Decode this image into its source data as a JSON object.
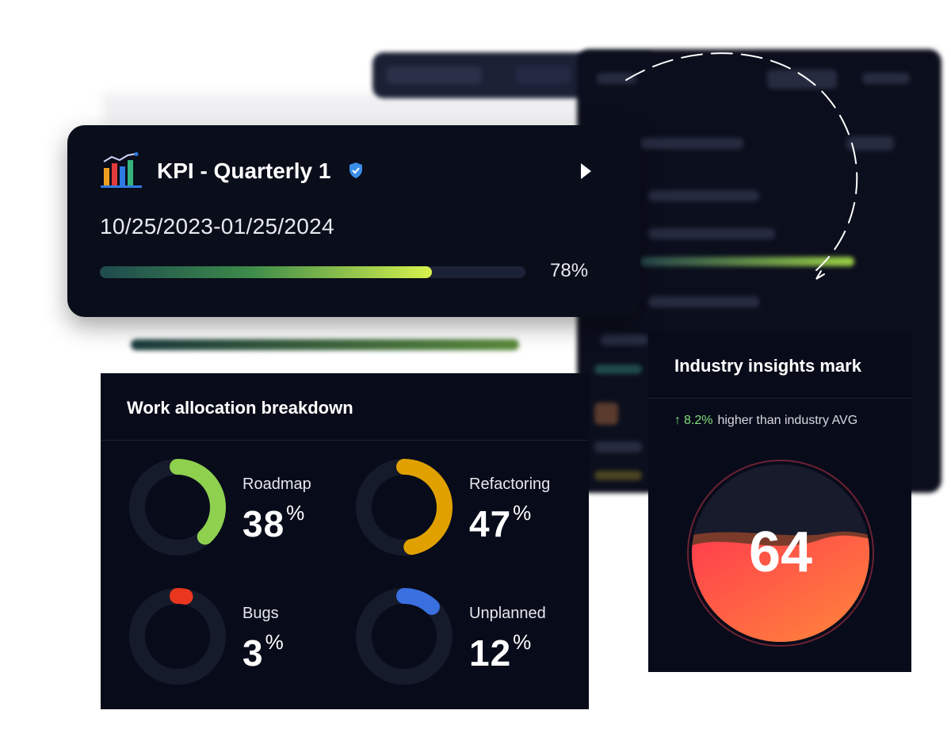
{
  "kpi": {
    "title": "KPI - Quarterly 1",
    "date_range": "10/25/2023-01/25/2024",
    "progress": 0.78,
    "progress_label": "78%",
    "logo_icon": "bar-chart-icon",
    "badge_icon": "verified-shield-icon",
    "action_icon": "play-arrow-icon"
  },
  "work_allocation": {
    "title": "Work allocation breakdown",
    "items": [
      {
        "label": "Roadmap",
        "value": "38",
        "unit": "%",
        "fraction": 0.38,
        "color": "#8fd14f"
      },
      {
        "label": "Refactoring",
        "value": "47",
        "unit": "%",
        "fraction": 0.47,
        "color": "#e0a100"
      },
      {
        "label": "Bugs",
        "value": "3",
        "unit": "%",
        "fraction": 0.03,
        "color": "#e8361f"
      },
      {
        "label": "Unplanned",
        "value": "12",
        "unit": "%",
        "fraction": 0.12,
        "color": "#3a6fe0"
      }
    ]
  },
  "insights": {
    "title": "Industry insights mark",
    "delta": "8.2%",
    "delta_text": "higher than  industry AVG",
    "score": "64",
    "fill_level": 0.64,
    "delta_icon": "arrow-up-icon"
  }
}
